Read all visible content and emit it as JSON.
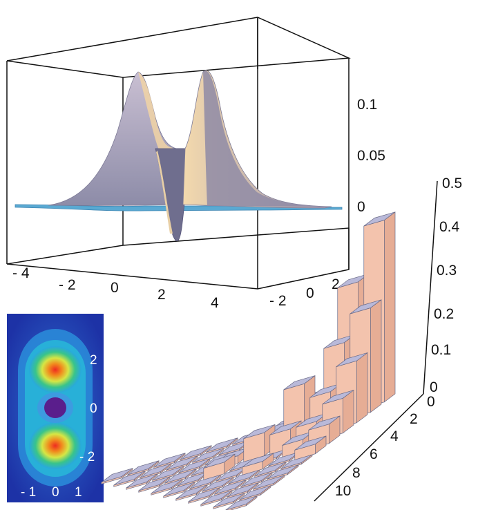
{
  "chart_data": [
    {
      "type": "surface",
      "x_ticks": [
        "- 4",
        "- 2",
        "0",
        "2",
        "4"
      ],
      "y_ticks": [
        "- 2",
        "0",
        "2"
      ],
      "z_ticks": [
        "0",
        "0.05",
        "0.1"
      ],
      "x_range": [
        -5,
        5
      ],
      "y_range": [
        -3,
        3
      ],
      "z_range": [
        -0.04,
        0.13
      ],
      "peaks": [
        {
          "x": -1.3,
          "height": 0.12
        },
        {
          "x": 1.3,
          "height": 0.12
        }
      ],
      "dip": {
        "x": 0,
        "height": -0.03
      },
      "colors": {
        "surface_top": "#b8b0c6",
        "surface_side": "#7f7f9c",
        "highlight": "#f1d4a4",
        "base": "#5aa9d2"
      }
    },
    {
      "type": "heatmap",
      "x_ticks": [
        "- 1",
        "0",
        "1"
      ],
      "y_ticks": [
        "2",
        "0",
        "- 2"
      ],
      "colors": {
        "background": "#1d32a6",
        "outer": "#28a8e0",
        "mid": "#39c48a",
        "ring": "#d6e645",
        "hot": "#ee2b21",
        "core": "#5a1e8c"
      }
    },
    {
      "type": "bar3d",
      "z_ticks": [
        "0",
        "0.1",
        "0.2",
        "0.3",
        "0.4",
        "0.5"
      ],
      "depth_ticks": [
        "0",
        "2",
        "4",
        "6",
        "8",
        "10"
      ],
      "z_range": [
        0,
        0.5
      ],
      "bars": [
        {
          "i": 0,
          "j": 0,
          "value": 0.47
        },
        {
          "i": 1,
          "j": 0,
          "value": 0.33
        },
        {
          "i": 0,
          "j": 1,
          "value": 0.27
        },
        {
          "i": 1,
          "j": 1,
          "value": 0.2
        },
        {
          "i": 0,
          "j": 2,
          "value": 0.16
        },
        {
          "i": 2,
          "j": 2,
          "value": 0.14
        },
        {
          "i": 1,
          "j": 2,
          "value": 0.1
        },
        {
          "i": 2,
          "j": 1,
          "value": 0.08
        },
        {
          "i": 0,
          "j": 3,
          "value": 0.09
        },
        {
          "i": 3,
          "j": 3,
          "value": 0.06
        },
        {
          "i": 1,
          "j": 3,
          "value": 0.05
        },
        {
          "i": 2,
          "j": 3,
          "value": 0.05
        },
        {
          "i": 0,
          "j": 4,
          "value": 0.05
        },
        {
          "i": 3,
          "j": 2,
          "value": 0.04
        },
        {
          "i": 1,
          "j": 4,
          "value": 0.03
        },
        {
          "i": 4,
          "j": 4,
          "value": 0.03
        },
        {
          "i": 3,
          "j": 1,
          "value": 0.03
        },
        {
          "i": 0,
          "j": 5,
          "value": 0.025
        },
        {
          "i": 2,
          "j": 5,
          "value": 0.02
        },
        {
          "i": 4,
          "j": 3,
          "value": 0.02
        }
      ],
      "colors": {
        "top": "#b9b9d9",
        "front": "#f3c3ad",
        "side": "#e6ad95",
        "tile": "#b7b8d6",
        "tile_front": "#f0c6b4"
      }
    }
  ]
}
